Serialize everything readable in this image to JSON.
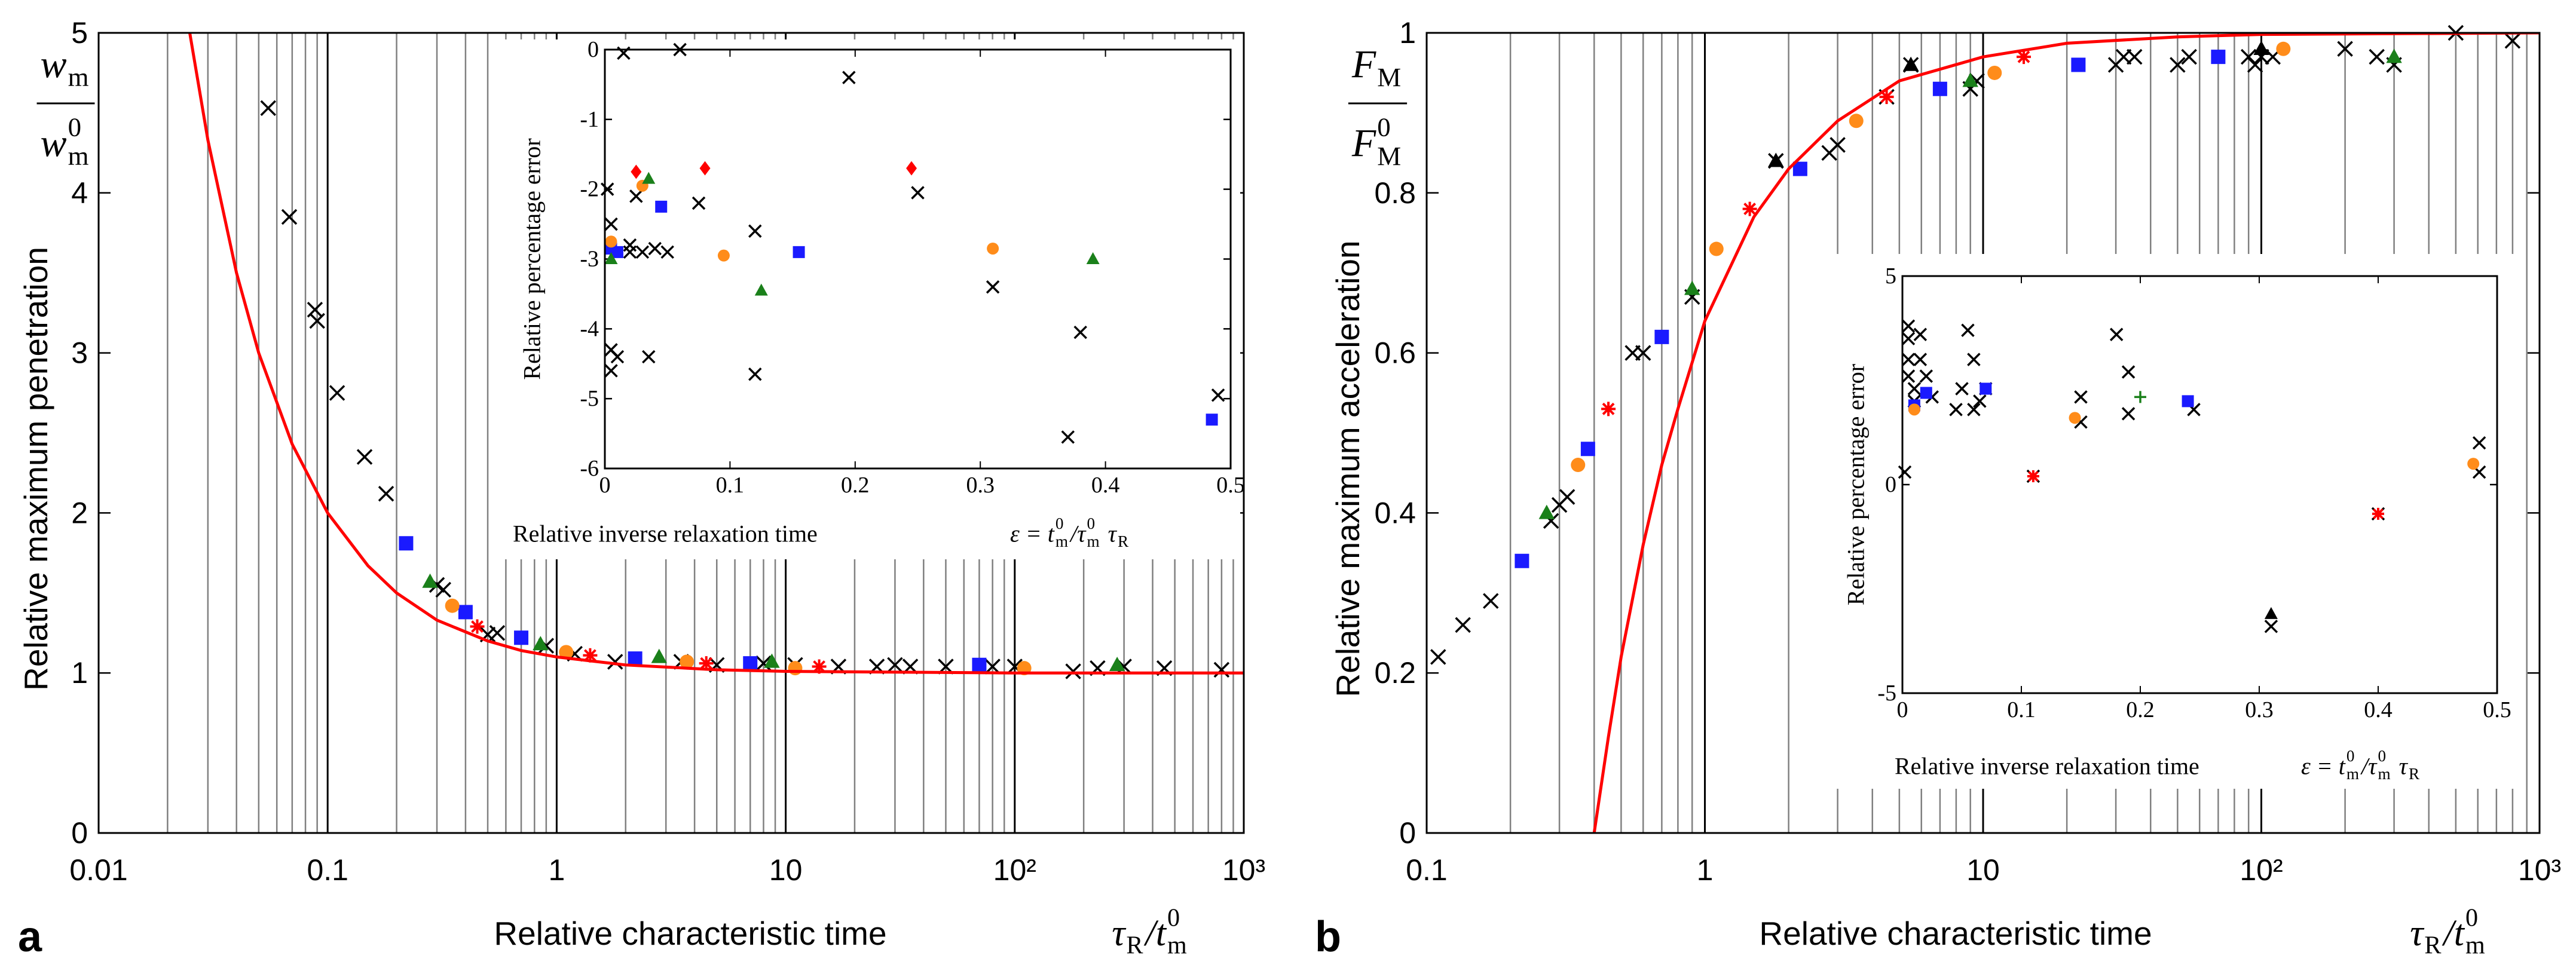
{
  "chart_data": [
    {
      "type": "scatter",
      "xlog": true,
      "panel_label": "a",
      "xlabel": "Relative characteristic time",
      "ylabel": "Relative maximum penetration",
      "xlabel_math": [
        {
          "base": "τ",
          "sub": "R"
        },
        {
          "base": "/t",
          "sub": "m",
          "sup": "0"
        }
      ],
      "ylabel_fraction": {
        "numerator": [
          {
            "base": "w",
            "sub": "m"
          }
        ],
        "denominator": [
          {
            "base": "w",
            "sub": "m",
            "sup": "0"
          }
        ]
      },
      "xlim": [
        0.01,
        1000
      ],
      "ylim": [
        0,
        5
      ],
      "xticks": [
        0.01,
        0.1,
        1,
        10,
        {
          "value": 100,
          "label": "10²"
        },
        {
          "value": 1000,
          "label": "10³"
        }
      ],
      "xminorticks": [
        0.02,
        0.03,
        0.04,
        0.05,
        0.06,
        0.07,
        0.08,
        0.09,
        0.2,
        0.3,
        0.4,
        0.5,
        0.6,
        0.7,
        0.8,
        0.9,
        2,
        3,
        4,
        5,
        6,
        7,
        8,
        9,
        20,
        30,
        40,
        50,
        60,
        70,
        80,
        90,
        200,
        300,
        400,
        500,
        600,
        700,
        800,
        900
      ],
      "yticks": [
        0,
        1,
        2,
        3,
        4,
        5
      ],
      "grid": "x",
      "series": [
        {
          "color": "#000000",
          "marker": "x",
          "x": [
            0.055,
            0.068,
            0.088,
            0.09,
            0.11,
            0.145,
            0.18,
            0.3,
            0.32,
            0.5,
            0.55,
            0.9,
            1.2,
            1.8,
            3.5,
            5,
            8,
            11,
            17,
            25,
            30,
            35,
            50,
            80,
            100,
            180,
            230,
            300,
            450,
            800
          ],
          "values": [
            4.53,
            3.85,
            3.27,
            3.2,
            2.75,
            2.35,
            2.12,
            1.55,
            1.52,
            1.24,
            1.25,
            1.17,
            1.12,
            1.07,
            1.07,
            1.05,
            1.06,
            1.05,
            1.04,
            1.04,
            1.05,
            1.04,
            1.04,
            1.04,
            1.04,
            1.01,
            1.03,
            1.04,
            1.03,
            1.02
          ]
        },
        {
          "color": "#1a1aff",
          "marker": "square",
          "x": [
            0.22,
            0.4,
            0.7,
            2.2,
            7,
            70
          ],
          "values": [
            1.81,
            1.38,
            1.22,
            1.09,
            1.06,
            1.05
          ]
        },
        {
          "color": "#ff8c1a",
          "marker": "circle",
          "x": [
            0.35,
            1.1,
            3.7,
            11,
            110
          ],
          "values": [
            1.42,
            1.13,
            1.07,
            1.03,
            1.03
          ]
        },
        {
          "color": "#1a801a",
          "marker": "triangle",
          "x": [
            0.28,
            0.85,
            2.8,
            8.7,
            280
          ],
          "values": [
            1.57,
            1.18,
            1.1,
            1.07,
            1.05
          ]
        },
        {
          "color": "#ff0000",
          "marker": "star",
          "x": [
            0.45,
            1.4,
            4.5,
            14
          ],
          "values": [
            1.29,
            1.11,
            1.06,
            1.04
          ]
        },
        {
          "color": "#ff0000",
          "marker": "line",
          "x": [
            0.025,
            0.03,
            0.04,
            0.05,
            0.07,
            0.1,
            0.15,
            0.2,
            0.3,
            0.5,
            0.7,
            1,
            2,
            5,
            10,
            100,
            1000
          ],
          "values": [
            5,
            4.33,
            3.5,
            3,
            2.43,
            2,
            1.67,
            1.5,
            1.33,
            1.2,
            1.14,
            1.1,
            1.05,
            1.02,
            1.01,
            1,
            1
          ]
        }
      ]
    },
    {
      "type": "scatter",
      "inset": true,
      "xlabel": "Relative inverse relaxation time",
      "ylabel": "Relative percentage error",
      "xlabel_math": [
        {
          "base": "ε = t",
          "sub": "m",
          "sup": "0"
        },
        {
          "base": "/τ",
          "sub": "m",
          "sup": "0"
        },
        {
          "base": " τ",
          "sub": "R"
        }
      ],
      "xlim": [
        0,
        0.5
      ],
      "ylim": [
        -6,
        0
      ],
      "xticks": [
        0,
        0.1,
        0.2,
        0.3,
        0.4,
        0.5
      ],
      "yticks": [
        -6,
        -5,
        -4,
        -3,
        -2,
        -1,
        0
      ],
      "series": [
        {
          "color": "#000000",
          "marker": "x",
          "x": [
            0.002,
            0.005,
            0.005,
            0.005,
            0.01,
            0.015,
            0.02,
            0.02,
            0.025,
            0.03,
            0.035,
            0.04,
            0.05,
            0.06,
            0.075,
            0.12,
            0.12,
            0.195,
            0.25,
            0.31,
            0.37,
            0.38,
            0.49
          ],
          "values": [
            -2.0,
            -2.5,
            -4.3,
            -4.6,
            -4.4,
            -0.05,
            -2.8,
            -2.9,
            -2.1,
            -2.9,
            -4.4,
            -2.85,
            -2.9,
            0,
            -2.2,
            -2.6,
            -4.65,
            -0.4,
            -2.05,
            -3.4,
            -5.55,
            -4.05,
            -4.95
          ]
        },
        {
          "color": "#1a1aff",
          "marker": "square",
          "x": [
            0.005,
            0.01,
            0.045,
            0.155,
            0.485
          ],
          "values": [
            -2.85,
            -2.9,
            -2.25,
            -2.9,
            -5.3
          ]
        },
        {
          "color": "#ff8c1a",
          "marker": "circle",
          "x": [
            0.005,
            0.03,
            0.095,
            0.31
          ],
          "values": [
            -2.75,
            -1.95,
            -2.95,
            -2.85
          ]
        },
        {
          "color": "#1a801a",
          "marker": "triangle",
          "x": [
            0.005,
            0.035,
            0.125,
            0.39
          ],
          "values": [
            -3.0,
            -1.85,
            -3.45,
            -3.0
          ]
        },
        {
          "color": "#ff0000",
          "marker": "diamond",
          "x": [
            0.025,
            0.08,
            0.245
          ],
          "values": [
            -1.75,
            -1.7,
            -1.7
          ]
        }
      ]
    },
    {
      "type": "scatter",
      "xlog": true,
      "panel_label": "b",
      "xlabel": "Relative characteristic time",
      "ylabel": "Relative maximum acceleration",
      "xlabel_math": [
        {
          "base": "τ",
          "sub": "R"
        },
        {
          "base": "/t",
          "sub": "m",
          "sup": "0"
        }
      ],
      "ylabel_fraction": {
        "numerator": [
          {
            "base": "F",
            "sub": "M"
          }
        ],
        "denominator": [
          {
            "base": "F",
            "sub": "M",
            "sup": "0"
          }
        ]
      },
      "xlim": [
        0.1,
        1000
      ],
      "ylim": [
        0,
        1
      ],
      "xticks": [
        0.1,
        1,
        10,
        {
          "value": 100,
          "label": "10²"
        },
        {
          "value": 1000,
          "label": "10³"
        }
      ],
      "xminorticks": [
        0.2,
        0.3,
        0.4,
        0.5,
        0.6,
        0.7,
        0.8,
        0.9,
        2,
        3,
        4,
        5,
        6,
        7,
        8,
        9,
        20,
        30,
        40,
        50,
        60,
        70,
        80,
        90,
        200,
        300,
        400,
        500,
        600,
        700,
        800,
        900
      ],
      "yticks": [
        0,
        0.2,
        0.4,
        0.6,
        0.8,
        1
      ],
      "grid": "x",
      "series": [
        {
          "color": "#000000",
          "marker": "x",
          "x": [
            0.11,
            0.135,
            0.17,
            0.28,
            0.3,
            0.32,
            0.55,
            0.6,
            0.9,
            1.8,
            2.8,
            3,
            4.5,
            5.5,
            9,
            9.5,
            30,
            32,
            35,
            50,
            55,
            90,
            95,
            100,
            110,
            200,
            260,
            300,
            500,
            800
          ],
          "values": [
            0.22,
            0.26,
            0.29,
            0.39,
            0.41,
            0.42,
            0.6,
            0.6,
            0.67,
            0.84,
            0.85,
            0.86,
            0.92,
            0.96,
            0.93,
            0.94,
            0.96,
            0.97,
            0.97,
            0.96,
            0.97,
            0.97,
            0.96,
            0.97,
            0.97,
            0.98,
            0.97,
            0.96,
            1.0,
            0.99
          ]
        },
        {
          "color": "#1a1aff",
          "marker": "square",
          "x": [
            0.22,
            0.38,
            0.7,
            2.2,
            7,
            22,
            70
          ],
          "values": [
            0.34,
            0.48,
            0.62,
            0.83,
            0.93,
            0.96,
            0.97
          ]
        },
        {
          "color": "#ff8c1a",
          "marker": "circle",
          "x": [
            0.35,
            1.1,
            3.5,
            11,
            120
          ],
          "values": [
            0.46,
            0.73,
            0.89,
            0.95,
            0.98
          ]
        },
        {
          "color": "#1a801a",
          "marker": "triangle",
          "x": [
            0.27,
            0.9,
            9,
            300
          ],
          "values": [
            0.4,
            0.68,
            0.94,
            0.97
          ]
        },
        {
          "color": "#ff0000",
          "marker": "star",
          "x": [
            0.45,
            1.45,
            4.5,
            14
          ],
          "values": [
            0.53,
            0.78,
            0.92,
            0.97
          ]
        },
        {
          "color": "#000000",
          "marker": "triangle",
          "x": [
            1.8,
            5.5,
            100
          ],
          "values": [
            0.84,
            0.96,
            0.98
          ]
        },
        {
          "color": "#ff0000",
          "marker": "line",
          "x": [
            0.4,
            0.45,
            0.5,
            0.6,
            0.7,
            0.8,
            1,
            1.5,
            2,
            3,
            5,
            10,
            20,
            50,
            100,
            1000
          ],
          "values": [
            0,
            0.12,
            0.22,
            0.36,
            0.46,
            0.53,
            0.64,
            0.77,
            0.83,
            0.89,
            0.94,
            0.97,
            0.987,
            0.995,
            0.998,
            1
          ]
        }
      ]
    },
    {
      "type": "scatter",
      "inset": true,
      "xlabel": "Relative inverse relaxation time",
      "ylabel": "Relative percentage error",
      "xlabel_math": [
        {
          "base": "ε = t",
          "sub": "m",
          "sup": "0"
        },
        {
          "base": "/τ",
          "sub": "m",
          "sup": "0"
        },
        {
          "base": " τ",
          "sub": "R"
        }
      ],
      "xlim": [
        0,
        0.5
      ],
      "ylim": [
        -5,
        5
      ],
      "xticks": [
        0,
        0.1,
        0.2,
        0.3,
        0.4,
        0.5
      ],
      "yticks": [
        -5,
        0,
        5
      ],
      "series": [
        {
          "color": "#000000",
          "marker": "x",
          "x": [
            0.002,
            0.005,
            0.005,
            0.005,
            0.005,
            0.01,
            0.01,
            0.015,
            0.015,
            0.02,
            0.025,
            0.045,
            0.05,
            0.055,
            0.06,
            0.06,
            0.065,
            0.07,
            0.15,
            0.15,
            0.18,
            0.19,
            0.19,
            0.245,
            0.31,
            0.485,
            0.485,
            0.11,
            0.4
          ],
          "values": [
            0.3,
            3.8,
            3.5,
            3.0,
            2.6,
            2.3,
            2.0,
            3.6,
            3.0,
            2.6,
            2.1,
            1.8,
            2.3,
            3.7,
            3.0,
            1.8,
            2.0,
            2.3,
            1.5,
            2.1,
            3.6,
            2.7,
            1.7,
            1.8,
            -3.4,
            1.0,
            0.3,
            0.2,
            -0.7
          ]
        },
        {
          "color": "#1a1aff",
          "marker": "square",
          "x": [
            0.01,
            0.02,
            0.07,
            0.24
          ],
          "values": [
            1.9,
            2.2,
            2.3,
            2.0
          ]
        },
        {
          "color": "#ff8c1a",
          "marker": "circle",
          "x": [
            0.01,
            0.145,
            0.48
          ],
          "values": [
            1.8,
            1.6,
            0.5
          ]
        },
        {
          "color": "#ff0000",
          "marker": "star",
          "x": [
            0.11,
            0.4
          ],
          "values": [
            0.2,
            -0.7
          ]
        },
        {
          "color": "#1a801a",
          "marker": "plus",
          "x": [
            0.2
          ],
          "values": [
            2.1
          ]
        },
        {
          "color": "#000000",
          "marker": "triangle",
          "x": [
            0.31
          ],
          "values": [
            -3.1
          ]
        }
      ]
    }
  ]
}
